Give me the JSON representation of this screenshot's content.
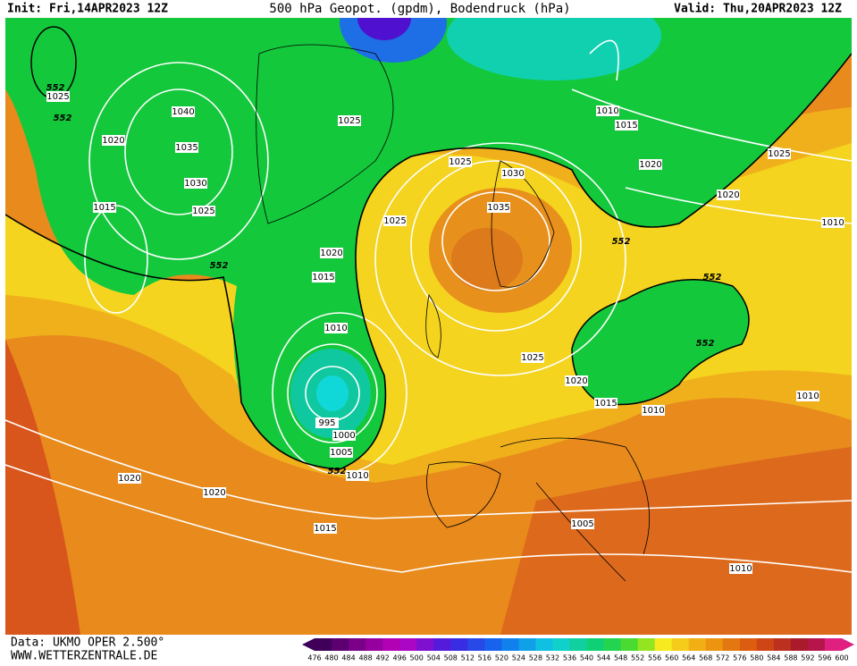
{
  "header": {
    "init": "Init: Fri,14APR2023 12Z",
    "title": "500 hPa Geopot. (gpdm), Bodendruck (hPa)",
    "valid": "Valid: Thu,20APR2023 12Z"
  },
  "isobar_labels": [
    "552",
    "1025",
    "552",
    "1040",
    "1020",
    "1035",
    "1030",
    "1015",
    "1025",
    "552",
    "1025",
    "1025",
    "1030",
    "1035",
    "1025",
    "1020",
    "1015",
    "1010",
    "995",
    "1000",
    "1005",
    "552",
    "1010",
    "1010",
    "1015",
    "1020",
    "1025",
    "1020",
    "1010",
    "552",
    "552",
    "552",
    "1025",
    "1020",
    "1015",
    "1010",
    "1010",
    "1020",
    "1020",
    "1015",
    "1005",
    "1010"
  ],
  "footer": {
    "source": "Data: UKMO OPER 2.500°",
    "website": "WWW.WETTERZENTRALE.DE"
  },
  "colorbar": [
    476,
    480,
    484,
    488,
    492,
    496,
    500,
    504,
    508,
    512,
    516,
    520,
    524,
    528,
    532,
    536,
    540,
    544,
    548,
    552,
    556,
    560,
    564,
    568,
    572,
    576,
    580,
    584,
    588,
    592,
    596,
    600
  ]
}
